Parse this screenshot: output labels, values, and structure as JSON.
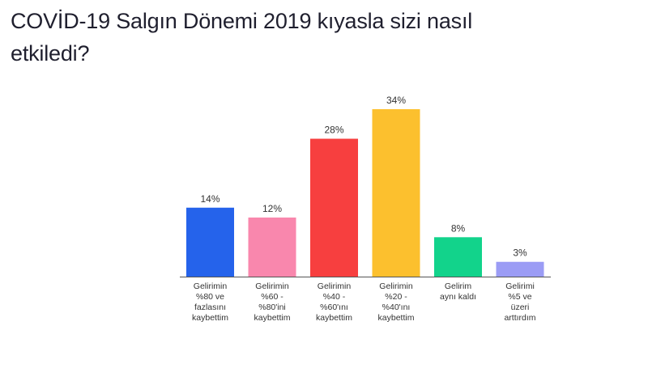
{
  "title_lines": [
    "COVİD-19 Salgın Dönemi 2019 kıyasla sizi nasıl",
    "etkiledi?"
  ],
  "chart_data": {
    "type": "bar",
    "title": "COVİD-19 Salgın Dönemi 2019 kıyasla sizi nasıl etkiledi?",
    "categories": [
      [
        "Gelirimin",
        "%80 ve",
        "fazlasını",
        "kaybettim"
      ],
      [
        "Gelirimin",
        "%60 -",
        "%80'ini",
        "kaybettim"
      ],
      [
        "Gelirimin",
        "%40 -",
        "%60'ını",
        "kaybettim"
      ],
      [
        "Gelirimin",
        "%20 -",
        "%40'ını",
        "kaybettim"
      ],
      [
        "Gelirim",
        "aynı kaldı"
      ],
      [
        "Gelirimi",
        "%5 ve",
        "üzeri",
        "arttırdım"
      ]
    ],
    "values": [
      14,
      12,
      28,
      34,
      8,
      3
    ],
    "value_labels": [
      "14%",
      "12%",
      "28%",
      "34%",
      "8%",
      "3%"
    ],
    "colors": [
      "#2563eb",
      "#f987ad",
      "#f73f3f",
      "#fcc02e",
      "#12d38b",
      "#9b9cf5"
    ],
    "ylim": [
      0,
      34
    ],
    "grid": false,
    "legend": "none"
  }
}
